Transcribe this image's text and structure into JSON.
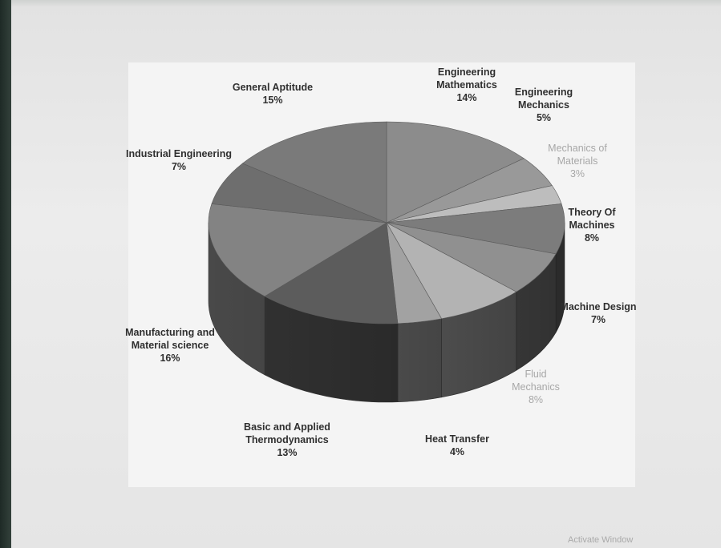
{
  "watermark": "Activate Window",
  "chart_data": {
    "type": "pie",
    "title": "",
    "slices": [
      {
        "label": [
          "Engineering",
          "Mathematics"
        ],
        "pct": "14%",
        "value": 14,
        "color": "#8c8c8c",
        "lightText": false
      },
      {
        "label": [
          "Engineering",
          "Mechanics"
        ],
        "pct": "5%",
        "value": 5,
        "color": "#999999",
        "lightText": false
      },
      {
        "label": [
          "Mechanics of",
          "Materials"
        ],
        "pct": "3%",
        "value": 3,
        "color": "#bdbdbd",
        "lightText": true
      },
      {
        "label": [
          "Theory Of",
          "Machines"
        ],
        "pct": "8%",
        "value": 8,
        "color": "#7c7c7c",
        "lightText": false
      },
      {
        "label": [
          "Machine Design"
        ],
        "pct": "7%",
        "value": 7,
        "color": "#909090",
        "lightText": false
      },
      {
        "label": [
          "Fluid",
          "Mechanics"
        ],
        "pct": "8%",
        "value": 8,
        "color": "#b3b3b3",
        "lightText": true
      },
      {
        "label": [
          "Heat Transfer"
        ],
        "pct": "4%",
        "value": 4,
        "color": "#a2a2a2",
        "lightText": false
      },
      {
        "label": [
          "Basic and Applied",
          "Thermodynamics"
        ],
        "pct": "13%",
        "value": 13,
        "color": "#5c5c5c",
        "lightText": false
      },
      {
        "label": [
          "Manufacturing and",
          "Material science"
        ],
        "pct": "16%",
        "value": 16,
        "color": "#838383",
        "lightText": false
      },
      {
        "label": [
          "Industrial Engineering"
        ],
        "pct": "7%",
        "value": 7,
        "color": "#6e6e6e",
        "lightText": false
      },
      {
        "label": [
          "General Aptitude"
        ],
        "pct": "15%",
        "value": 15,
        "color": "#7a7a7a",
        "lightText": false
      }
    ]
  }
}
